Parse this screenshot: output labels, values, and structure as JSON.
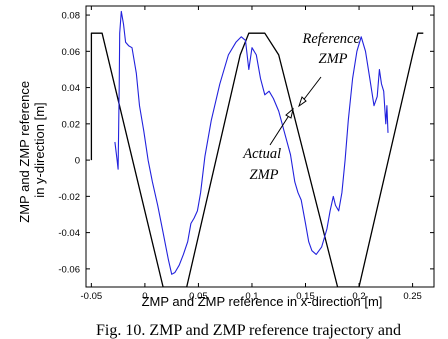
{
  "chart_data": {
    "type": "line",
    "title": "",
    "xlabel": "ZMP and ZMP reference in x-direction  [m]",
    "ylabel_lines": [
      "ZMP and ZMP reference",
      "in y-direction  [m]"
    ],
    "xlim": [
      -0.055,
      0.27
    ],
    "ylim": [
      -0.07,
      0.085
    ],
    "x_ticks": [
      "-0.05",
      "0",
      "0.05",
      "0.1",
      "0.15",
      "0.2",
      "0.25"
    ],
    "y_ticks": [
      "0.08",
      "0.06",
      "0.04",
      "0.02",
      "0",
      "-0.02",
      "-0.04",
      "-0.06"
    ],
    "annotations": [
      {
        "lines": [
          "Reference",
          "ZMP"
        ],
        "points_to": [
          0.13,
          0.034
        ]
      },
      {
        "lines": [
          "Actual",
          "ZMP"
        ],
        "points_to": [
          0.128,
          0.028
        ]
      }
    ],
    "series": [
      {
        "name": "Reference ZMP",
        "color": "#000000",
        "x": [
          -0.05,
          -0.05,
          -0.046,
          -0.046,
          -0.04,
          0.017,
          0.039,
          0.089,
          0.097,
          0.112,
          0.125,
          0.18,
          0.2,
          0.25,
          0.255,
          0.255,
          0.26
        ],
        "y": [
          0,
          0.07,
          0.07,
          0.07,
          0.07,
          -0.07,
          -0.07,
          0.058,
          0.07,
          0.07,
          0.058,
          -0.07,
          -0.07,
          0.058,
          0.07,
          0.07,
          0.07
        ]
      },
      {
        "name": "Actual ZMP",
        "color": "#2222dd",
        "x": [
          -0.028,
          -0.026,
          -0.025,
          -0.024,
          -0.0235,
          -0.022,
          -0.02,
          -0.018,
          -0.015,
          -0.012,
          -0.008,
          -0.005,
          -0.001,
          0.003,
          0.007,
          0.012,
          0.017,
          0.022,
          0.025,
          0.028,
          0.032,
          0.036,
          0.04,
          0.043,
          0.046,
          0.049,
          0.05,
          0.052,
          0.056,
          0.062,
          0.07,
          0.078,
          0.085,
          0.09,
          0.094,
          0.097,
          0.1,
          0.104,
          0.108,
          0.112,
          0.116,
          0.12,
          0.125,
          0.13,
          0.136,
          0.14,
          0.143,
          0.146,
          0.15,
          0.153,
          0.156,
          0.16,
          0.165,
          0.17,
          0.173,
          0.176,
          0.178,
          0.181,
          0.184,
          0.187,
          0.19,
          0.194,
          0.198,
          0.202,
          0.206,
          0.21,
          0.214,
          0.217,
          0.219,
          0.221,
          0.223,
          0.225,
          0.226,
          0.227
        ],
        "y": [
          0.01,
          0.0,
          -0.005,
          0.04,
          0.07,
          0.082,
          0.075,
          0.065,
          0.063,
          0.062,
          0.048,
          0.03,
          0.016,
          0.0,
          -0.012,
          -0.025,
          -0.04,
          -0.055,
          -0.063,
          -0.062,
          -0.058,
          -0.052,
          -0.045,
          -0.035,
          -0.032,
          -0.028,
          -0.025,
          -0.018,
          0.002,
          0.022,
          0.042,
          0.058,
          0.065,
          0.068,
          0.066,
          0.05,
          0.062,
          0.058,
          0.045,
          0.036,
          0.038,
          0.034,
          0.027,
          0.016,
          0.003,
          -0.012,
          -0.018,
          -0.022,
          -0.035,
          -0.045,
          -0.05,
          -0.052,
          -0.048,
          -0.038,
          -0.028,
          -0.02,
          -0.025,
          -0.028,
          -0.018,
          0.0,
          0.022,
          0.045,
          0.06,
          0.068,
          0.06,
          0.045,
          0.03,
          0.035,
          0.05,
          0.042,
          0.038,
          0.02,
          0.03,
          0.015
        ]
      }
    ]
  },
  "caption": "Fig. 10. ZMP and ZMP reference trajectory and"
}
